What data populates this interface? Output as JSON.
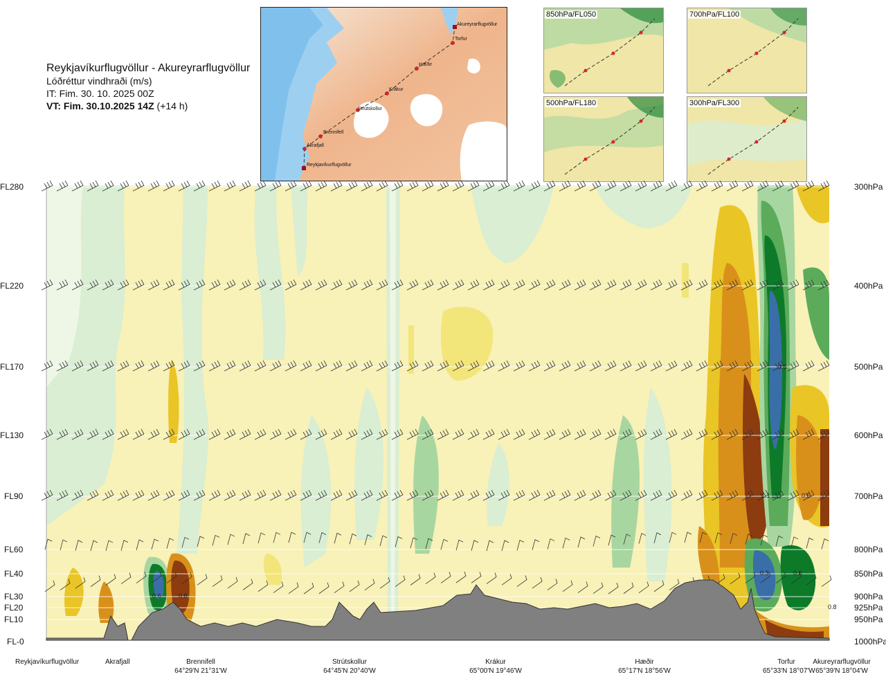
{
  "header": {
    "route": "Reykjavíkurflugvöllur - Akureyrarflugvöllur",
    "field": "Lóðréttur vindhraði (m/s)",
    "issue_time": "IT: Fim. 30. 10. 2025 00Z",
    "valid_time_label": "VT: Fim. 30.10.2025 14Z",
    "valid_time_offset": "(+14 h)"
  },
  "map": {
    "waypoints": [
      "Akureyrarflugvöllur",
      "Torfur",
      "Hæðir",
      "Krákur",
      "Strútskollur",
      "Brennifell",
      "Akrafjall",
      "Reykjavíkurflugvöllur"
    ]
  },
  "thumbnails": [
    {
      "label": "850hPa/FL050"
    },
    {
      "label": "700hPa/FL100"
    },
    {
      "label": "500hPa/FL180"
    },
    {
      "label": "300hPa/FL300"
    }
  ],
  "colors": {
    "strong_up": "#3a6ea8",
    "up_dark": "#0d7a2a",
    "up_mid": "#5bab5b",
    "up_light": "#a8d6a0",
    "up_faint": "#d9eed3",
    "neutral": "#f8f1b8",
    "down_faint": "#f2e57a",
    "down_light": "#e9c526",
    "down_mid": "#d9901a",
    "down_dark": "#8c3c0f",
    "terrain": "#808080"
  },
  "chart_data": {
    "type": "heatmap",
    "title": "Lóðréttur vindhraði (m/s)",
    "x_locations": [
      {
        "name": "Reykjavíkurflugvöllur",
        "coord": ""
      },
      {
        "name": "Akrafjall",
        "coord": ""
      },
      {
        "name": "Brennifell",
        "coord": "64°29'N 21°31'W"
      },
      {
        "name": "Strútskollur",
        "coord": "64°45'N 20°40'W"
      },
      {
        "name": "Krákur",
        "coord": "65°00'N 19°46'W"
      },
      {
        "name": "Hæðir",
        "coord": "65°17'N 18°56'W"
      },
      {
        "name": "Torfur",
        "coord": "65°33'N 18°07'W"
      },
      {
        "name": "Akureyrarflugvöllur",
        "coord": "65°39'N 18°04'W"
      }
    ],
    "flight_levels": [
      "FL280",
      "FL220",
      "FL170",
      "FL130",
      "FL90",
      "FL60",
      "FL40",
      "FL30",
      "FL20",
      "FL10",
      "FL-0"
    ],
    "pressure_levels": [
      "300hPa",
      "400hPa",
      "500hPa",
      "600hPa",
      "700hPa",
      "800hPa",
      "850hPa",
      "900hPa",
      "925hPa",
      "950hPa",
      "1000hPa"
    ],
    "contour_labels": [
      "0.6",
      "0.8",
      "1.1",
      "0.5",
      "0.3",
      "0.6",
      "0.6",
      "0.8"
    ]
  }
}
